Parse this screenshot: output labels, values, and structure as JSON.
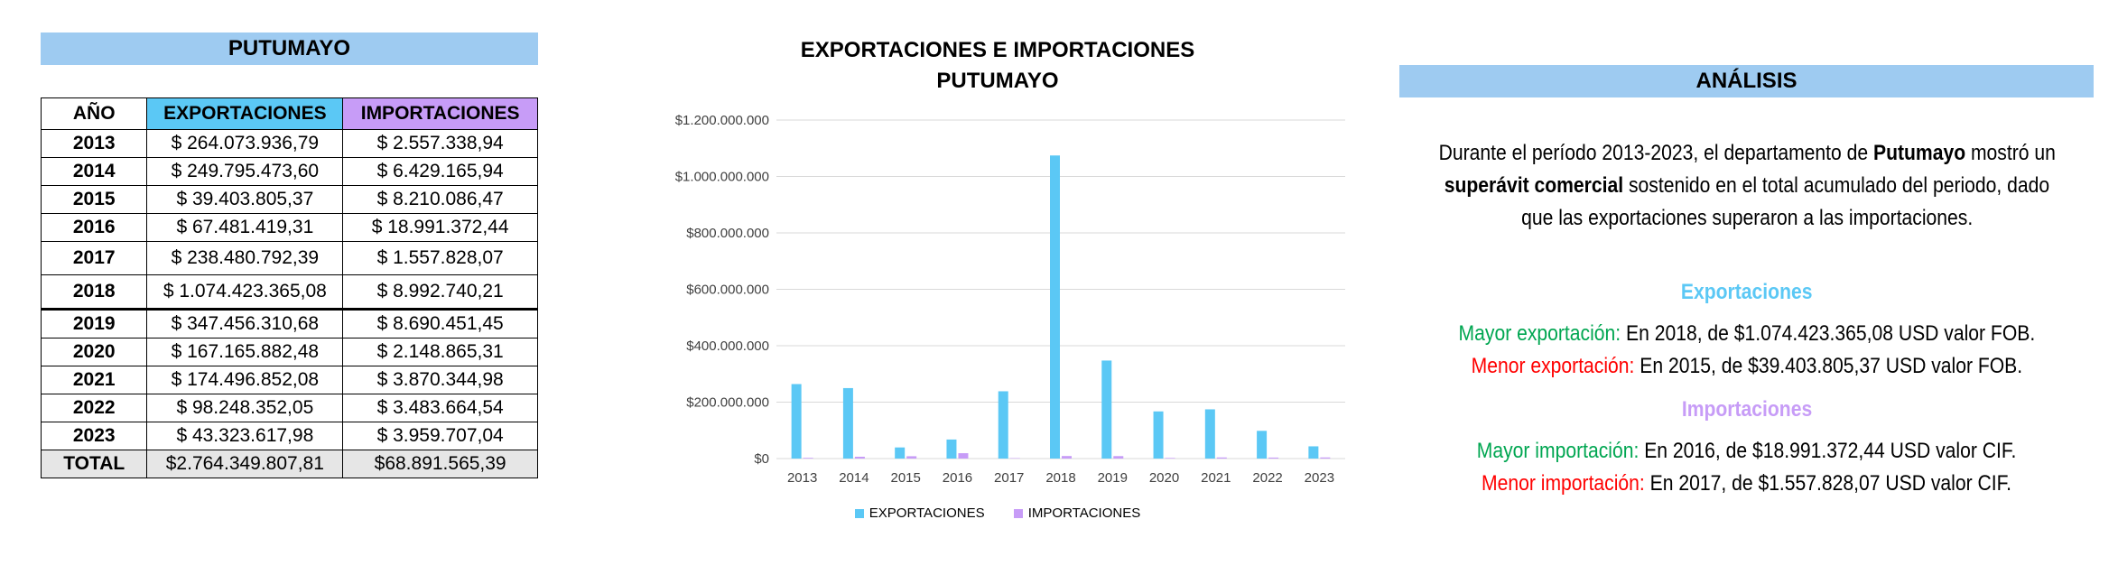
{
  "table": {
    "title": "PUTUMAYO",
    "headers": [
      "AÑO",
      "EXPORTACIONES",
      "IMPORTACIONES"
    ],
    "header_colors": [
      "#ffffff",
      "#5bc8f5",
      "#c79cf7"
    ],
    "rows": [
      {
        "year": "2013",
        "exp": "$ 264.073.936,79",
        "imp": "$ 2.557.338,94"
      },
      {
        "year": "2014",
        "exp": "$ 249.795.473,60",
        "imp": "$ 6.429.165,94"
      },
      {
        "year": "2015",
        "exp": "$ 39.403.805,37",
        "imp": "$ 8.210.086,47"
      },
      {
        "year": "2016",
        "exp": "$ 67.481.419,31",
        "imp": "$ 18.991.372,44"
      },
      {
        "year": "2017",
        "exp": "$ 238.480.792,39",
        "imp": "$ 1.557.828,07"
      },
      {
        "year": "2018",
        "exp": "$ 1.074.423.365,08",
        "imp": "$ 8.992.740,21"
      },
      {
        "year": "2019",
        "exp": "$ 347.456.310,68",
        "imp": "$ 8.690.451,45"
      },
      {
        "year": "2020",
        "exp": "$ 167.165.882,48",
        "imp": "$ 2.148.865,31"
      },
      {
        "year": "2021",
        "exp": "$ 174.496.852,08",
        "imp": "$ 3.870.344,98"
      },
      {
        "year": "2022",
        "exp": "$ 98.248.352,05",
        "imp": "$ 3.483.664,54"
      },
      {
        "year": "2023",
        "exp": "$ 43.323.617,98",
        "imp": "$ 3.959.707,04"
      }
    ],
    "total": {
      "label": "TOTAL",
      "exp": "$2.764.349.807,81",
      "imp": "$68.891.565,39"
    }
  },
  "chart_data": {
    "type": "bar",
    "title_line1": "EXPORTACIONES E IMPORTACIONES",
    "title_line2": "PUTUMAYO",
    "categories": [
      "2013",
      "2014",
      "2015",
      "2016",
      "2017",
      "2018",
      "2019",
      "2020",
      "2021",
      "2022",
      "2023"
    ],
    "series": [
      {
        "name": "EXPORTACIONES",
        "color": "#5bc8f5",
        "values": [
          264073936.79,
          249795473.6,
          39403805.37,
          67481419.31,
          238480792.39,
          1074423365.08,
          347456310.68,
          167165882.48,
          174496852.08,
          98248352.05,
          43323617.98
        ]
      },
      {
        "name": "IMPORTACIONES",
        "color": "#c79cf7",
        "values": [
          2557338.94,
          6429165.94,
          8210086.47,
          18991372.44,
          1557828.07,
          8992740.21,
          8690451.45,
          2148865.31,
          3870344.98,
          3483664.54,
          3959707.04
        ]
      }
    ],
    "ylim": [
      0,
      1200000000
    ],
    "yticks": [
      0,
      200000000,
      400000000,
      600000000,
      800000000,
      1000000000,
      1200000000
    ],
    "ytick_labels": [
      "$0",
      "$200.000.000",
      "$400.000.000",
      "$600.000.000",
      "$800.000.000",
      "$1.000.000.000",
      "$1.200.000.000"
    ],
    "grid": true,
    "legend": "bottom"
  },
  "analysis": {
    "title": "ANÁLISIS",
    "p1_a": "Durante el período 2013-2023, el departamento de ",
    "p1_b": "Putumayo",
    "p1_c": " mostró un",
    "p2_a": "superávit comercial",
    "p2_b": " sostenido en el total acumulado del periodo, dado",
    "p3": "que las exportaciones superaron a las importaciones.",
    "exp_head": "Exportaciones",
    "exp_max_label": "Mayor exportación:",
    "exp_max_text": " En 2018, de $1.074.423.365,08 USD valor FOB.",
    "exp_min_label": "Menor exportación:",
    "exp_min_text": " En 2015, de $39.403.805,37 USD valor FOB.",
    "imp_head": "Importaciones",
    "imp_max_label": "Mayor importación:",
    "imp_max_text": " En 2016, de $18.991.372,44 USD valor CIF.",
    "imp_min_label": "Menor importación:",
    "imp_min_text": " En 2017, de $1.557.828,07 USD valor CIF.",
    "colors": {
      "exp_head": "#5bc8f5",
      "imp_head": "#c79cf7",
      "mayor": "#00a651",
      "menor": "#ff0000"
    }
  }
}
